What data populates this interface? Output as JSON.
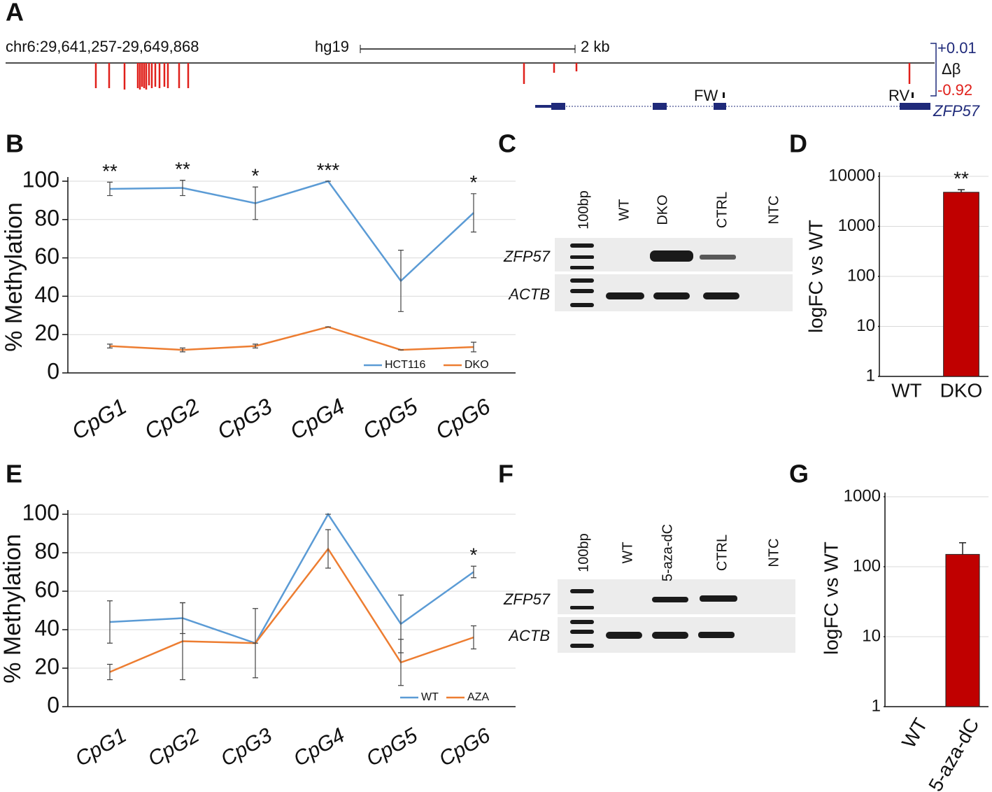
{
  "track": {
    "panel": "A",
    "region": "chr6:29,641,257-29,649,868",
    "assembly": "hg19",
    "scale": "2 kb",
    "delta_max": "+0.01",
    "delta_label": "Δβ",
    "delta_min": "-0.92",
    "primers": [
      "FW",
      "RV"
    ],
    "gene": "ZFP57"
  },
  "gels": [
    {
      "panel": "C",
      "lanes": [
        "100bp",
        "WT",
        "DKO",
        "CTRL",
        "NTC"
      ],
      "rows": [
        "ZFP57",
        "ACTB"
      ]
    },
    {
      "panel": "F",
      "lanes": [
        "100bp",
        "WT",
        "5-aza-dC",
        "CTRL",
        "NTC"
      ],
      "rows": [
        "ZFP57",
        "ACTB"
      ]
    }
  ],
  "chart_data": [
    {
      "type": "line",
      "panel": "B",
      "y_label": "% Methylation",
      "categories": [
        "CpG1",
        "CpG2",
        "CpG3",
        "CpG4",
        "CpG5",
        "CpG6"
      ],
      "series": [
        {
          "name": "HCT116",
          "color": "#5b9bd5",
          "values": [
            96,
            96.5,
            88.5,
            100,
            48,
            83.5
          ],
          "errors": [
            3.5,
            4,
            8.5,
            0,
            16,
            10
          ]
        },
        {
          "name": "DKO",
          "color": "#ed7d31",
          "values": [
            14,
            12,
            14,
            24,
            12,
            13.5
          ],
          "errors": [
            1,
            1,
            1,
            0,
            0,
            2.5
          ]
        }
      ],
      "annotations": [
        "**",
        "**",
        "*",
        "***",
        null,
        "*"
      ],
      "ylim": [
        0,
        100
      ],
      "yticks": [
        0,
        20,
        40,
        60,
        80,
        100
      ],
      "grid": true,
      "legend": "lower right"
    },
    {
      "type": "bar",
      "panel": "D",
      "y_label": "logFC vs WT",
      "categories": [
        "WT",
        "DKO"
      ],
      "values": [
        1,
        4800
      ],
      "errors": [
        0,
        600
      ],
      "annotations": [
        null,
        "**"
      ],
      "color": "#c00000",
      "log_scale": true,
      "ylim": [
        1,
        10000
      ],
      "yticks": [
        1,
        10,
        100,
        1000,
        10000
      ],
      "grid": true
    },
    {
      "type": "line",
      "panel": "E",
      "y_label": "% Methylation",
      "categories": [
        "CpG1",
        "CpG2",
        "CpG3",
        "CpG4",
        "CpG5",
        "CpG6"
      ],
      "series": [
        {
          "name": "WT",
          "color": "#5b9bd5",
          "values": [
            44,
            46,
            33,
            100,
            43,
            70
          ],
          "errors": [
            11,
            8,
            0,
            0,
            15,
            3
          ]
        },
        {
          "name": "AZA",
          "color": "#ed7d31",
          "values": [
            18,
            34,
            33,
            82,
            23,
            36
          ],
          "errors": [
            4,
            20,
            18,
            10,
            12,
            6
          ]
        }
      ],
      "annotations": [
        null,
        null,
        null,
        null,
        null,
        "*"
      ],
      "ylim": [
        0,
        100
      ],
      "yticks": [
        0,
        20,
        40,
        60,
        80,
        100
      ],
      "grid": true,
      "legend": "lower right"
    },
    {
      "type": "bar",
      "panel": "G",
      "y_label": "logFC vs WT",
      "categories": [
        "WT",
        "5-aza-dC"
      ],
      "values": [
        1,
        150
      ],
      "errors": [
        0,
        70
      ],
      "annotations": [
        null,
        null
      ],
      "color": "#c00000",
      "log_scale": true,
      "ylim": [
        1,
        1000
      ],
      "yticks": [
        1,
        10,
        100,
        1000
      ],
      "grid": true
    }
  ]
}
